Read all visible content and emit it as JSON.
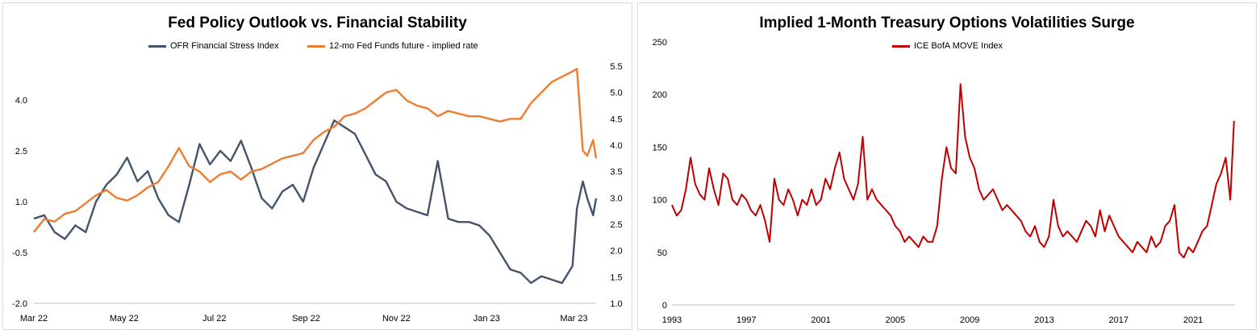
{
  "chart_data": [
    {
      "type": "line",
      "title": "Fed Policy Outlook vs. Financial Stability",
      "x_ticks": [
        "Mar 22",
        "May 22",
        "Jul 22",
        "Sep 22",
        "Nov 22",
        "Jan 23",
        "Mar 23"
      ],
      "y_left": {
        "ticks": [
          "-2.0",
          "-0.5",
          "1.0",
          "2.5",
          "4.0"
        ],
        "range": [
          -2.0,
          5.0
        ]
      },
      "y_right": {
        "ticks": [
          "1.0",
          "1.5",
          "2.0",
          "2.5",
          "3.0",
          "3.5",
          "4.0",
          "4.5",
          "5.0",
          "5.5"
        ],
        "range": [
          1.0,
          5.5
        ]
      },
      "legend_position": "top-center",
      "series": [
        {
          "name": "OFR Financial Stress Index",
          "axis": "left",
          "color": "#44546a",
          "x": [
            "2022-03-01",
            "2022-03-08",
            "2022-03-15",
            "2022-03-22",
            "2022-03-29",
            "2022-04-05",
            "2022-04-12",
            "2022-04-19",
            "2022-04-26",
            "2022-05-03",
            "2022-05-10",
            "2022-05-17",
            "2022-05-24",
            "2022-05-31",
            "2022-06-07",
            "2022-06-14",
            "2022-06-21",
            "2022-06-28",
            "2022-07-05",
            "2022-07-12",
            "2022-07-19",
            "2022-07-26",
            "2022-08-02",
            "2022-08-09",
            "2022-08-16",
            "2022-08-23",
            "2022-08-30",
            "2022-09-06",
            "2022-09-13",
            "2022-09-20",
            "2022-09-27",
            "2022-10-04",
            "2022-10-11",
            "2022-10-18",
            "2022-10-25",
            "2022-11-01",
            "2022-11-08",
            "2022-11-15",
            "2022-11-22",
            "2022-11-29",
            "2022-12-06",
            "2022-12-13",
            "2022-12-20",
            "2022-12-27",
            "2023-01-03",
            "2023-01-10",
            "2023-01-17",
            "2023-01-24",
            "2023-01-31",
            "2023-02-07",
            "2023-02-14",
            "2023-02-21",
            "2023-02-28",
            "2023-03-03",
            "2023-03-07",
            "2023-03-10",
            "2023-03-14",
            "2023-03-16"
          ],
          "y": [
            0.5,
            0.6,
            0.1,
            -0.1,
            0.3,
            0.1,
            1.0,
            1.5,
            1.8,
            2.3,
            1.6,
            1.9,
            1.1,
            0.6,
            0.4,
            1.5,
            2.7,
            2.1,
            2.5,
            2.2,
            2.8,
            2.0,
            1.1,
            0.8,
            1.3,
            1.5,
            1.0,
            2.0,
            2.7,
            3.4,
            3.2,
            3.0,
            2.4,
            1.8,
            1.6,
            1.0,
            0.8,
            0.7,
            0.6,
            2.2,
            0.5,
            0.4,
            0.4,
            0.3,
            0.0,
            -0.5,
            -1.0,
            -1.1,
            -1.4,
            -1.2,
            -1.3,
            -1.4,
            -0.9,
            0.8,
            1.6,
            1.1,
            0.6,
            1.1
          ]
        },
        {
          "name": "12-mo Fed Funds future - implied rate",
          "axis": "right",
          "color": "#ed7d31",
          "x": [
            "2022-03-01",
            "2022-03-08",
            "2022-03-15",
            "2022-03-22",
            "2022-03-29",
            "2022-04-05",
            "2022-04-12",
            "2022-04-19",
            "2022-04-26",
            "2022-05-03",
            "2022-05-10",
            "2022-05-17",
            "2022-05-24",
            "2022-05-31",
            "2022-06-07",
            "2022-06-14",
            "2022-06-21",
            "2022-06-28",
            "2022-07-05",
            "2022-07-12",
            "2022-07-19",
            "2022-07-26",
            "2022-08-02",
            "2022-08-09",
            "2022-08-16",
            "2022-08-23",
            "2022-08-30",
            "2022-09-06",
            "2022-09-13",
            "2022-09-20",
            "2022-09-27",
            "2022-10-04",
            "2022-10-11",
            "2022-10-18",
            "2022-10-25",
            "2022-11-01",
            "2022-11-08",
            "2022-11-15",
            "2022-11-22",
            "2022-11-29",
            "2022-12-06",
            "2022-12-13",
            "2022-12-20",
            "2022-12-27",
            "2023-01-03",
            "2023-01-10",
            "2023-01-17",
            "2023-01-24",
            "2023-01-31",
            "2023-02-07",
            "2023-02-14",
            "2023-02-21",
            "2023-02-28",
            "2023-03-03",
            "2023-03-07",
            "2023-03-10",
            "2023-03-14",
            "2023-03-16"
          ],
          "y": [
            2.35,
            2.6,
            2.55,
            2.7,
            2.75,
            2.9,
            3.05,
            3.15,
            3.0,
            2.95,
            3.05,
            3.2,
            3.3,
            3.6,
            3.95,
            3.6,
            3.5,
            3.3,
            3.45,
            3.5,
            3.35,
            3.5,
            3.55,
            3.65,
            3.75,
            3.8,
            3.85,
            4.1,
            4.25,
            4.35,
            4.55,
            4.6,
            4.7,
            4.85,
            5.0,
            5.05,
            4.85,
            4.75,
            4.7,
            4.55,
            4.65,
            4.6,
            4.55,
            4.55,
            4.5,
            4.45,
            4.5,
            4.5,
            4.8,
            5.0,
            5.2,
            5.3,
            5.4,
            5.45,
            3.9,
            3.8,
            4.1,
            3.75
          ]
        }
      ]
    },
    {
      "type": "line",
      "title": "Implied 1-Month Treasury Options Volatilities Surge",
      "x_ticks": [
        "1993",
        "1997",
        "2001",
        "2005",
        "2009",
        "2013",
        "2017",
        "2021"
      ],
      "y_left": {
        "ticks": [
          "0",
          "50",
          "100",
          "150",
          "200",
          "250"
        ],
        "range": [
          0,
          250
        ]
      },
      "legend_position": "top-center",
      "series": [
        {
          "name": "ICE BofA MOVE Index",
          "axis": "left",
          "color": "#c00000",
          "x": [
            1993.0,
            1993.25,
            1993.5,
            1993.75,
            1994.0,
            1994.25,
            1994.5,
            1994.75,
            1995.0,
            1995.25,
            1995.5,
            1995.75,
            1996.0,
            1996.25,
            1996.5,
            1996.75,
            1997.0,
            1997.25,
            1997.5,
            1997.75,
            1998.0,
            1998.25,
            1998.5,
            1998.75,
            1999.0,
            1999.25,
            1999.5,
            1999.75,
            2000.0,
            2000.25,
            2000.5,
            2000.75,
            2001.0,
            2001.25,
            2001.5,
            2001.75,
            2002.0,
            2002.25,
            2002.5,
            2002.75,
            2003.0,
            2003.25,
            2003.5,
            2003.75,
            2004.0,
            2004.25,
            2004.5,
            2004.75,
            2005.0,
            2005.25,
            2005.5,
            2005.75,
            2006.0,
            2006.25,
            2006.5,
            2006.75,
            2007.0,
            2007.25,
            2007.5,
            2007.75,
            2008.0,
            2008.25,
            2008.5,
            2008.75,
            2009.0,
            2009.25,
            2009.5,
            2009.75,
            2010.0,
            2010.25,
            2010.5,
            2010.75,
            2011.0,
            2011.25,
            2011.5,
            2011.75,
            2012.0,
            2012.25,
            2012.5,
            2012.75,
            2013.0,
            2013.25,
            2013.5,
            2013.75,
            2014.0,
            2014.25,
            2014.5,
            2014.75,
            2015.0,
            2015.25,
            2015.5,
            2015.75,
            2016.0,
            2016.25,
            2016.5,
            2016.75,
            2017.0,
            2017.25,
            2017.5,
            2017.75,
            2018.0,
            2018.25,
            2018.5,
            2018.75,
            2019.0,
            2019.25,
            2019.5,
            2019.75,
            2020.0,
            2020.25,
            2020.5,
            2020.75,
            2021.0,
            2021.25,
            2021.5,
            2021.75,
            2022.0,
            2022.25,
            2022.5,
            2022.75,
            2023.0,
            2023.2
          ],
          "y": [
            95,
            85,
            90,
            110,
            140,
            115,
            105,
            100,
            130,
            110,
            95,
            125,
            120,
            100,
            95,
            105,
            100,
            90,
            85,
            95,
            80,
            60,
            120,
            100,
            95,
            110,
            100,
            85,
            100,
            95,
            110,
            95,
            100,
            120,
            110,
            130,
            145,
            120,
            110,
            100,
            115,
            160,
            100,
            110,
            100,
            95,
            90,
            85,
            75,
            70,
            60,
            65,
            60,
            55,
            65,
            60,
            60,
            75,
            120,
            150,
            130,
            125,
            210,
            160,
            140,
            130,
            110,
            100,
            105,
            110,
            100,
            90,
            95,
            90,
            85,
            80,
            70,
            65,
            75,
            60,
            55,
            65,
            100,
            75,
            65,
            70,
            65,
            60,
            70,
            80,
            75,
            65,
            90,
            70,
            85,
            75,
            65,
            60,
            55,
            50,
            60,
            55,
            50,
            65,
            55,
            60,
            75,
            80,
            95,
            50,
            45,
            55,
            50,
            60,
            70,
            75,
            95,
            115,
            125,
            140,
            100,
            175
          ]
        }
      ]
    }
  ]
}
